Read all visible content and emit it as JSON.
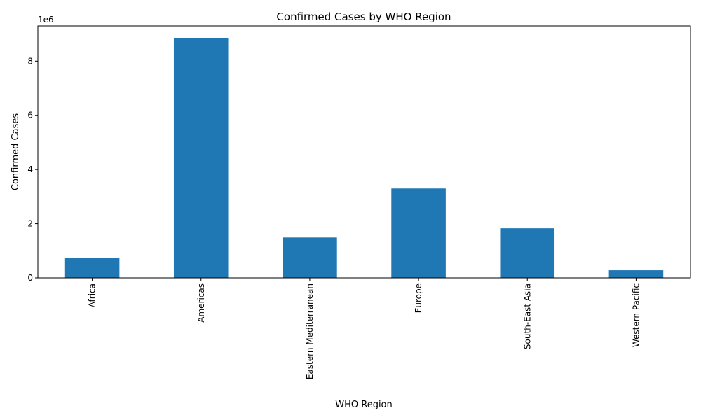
{
  "chart_data": {
    "type": "bar",
    "title": "Confirmed Cases by WHO Region",
    "xlabel": "WHO Region",
    "ylabel": "Confirmed Cases",
    "y_multiplier_label": "1e6",
    "categories": [
      "Africa",
      "Americas",
      "Eastern Mediterranean",
      "Europe",
      "South-East Asia",
      "Western Pacific"
    ],
    "values": [
      723000,
      8840000,
      1490000,
      3300000,
      1830000,
      282000
    ],
    "ylim": [
      0,
      9300000
    ],
    "yticks": [
      0,
      2000000,
      4000000,
      6000000,
      8000000
    ],
    "ytick_labels": [
      "0",
      "2",
      "4",
      "6",
      "8"
    ],
    "bar_color": "#1f77b4",
    "grid": false,
    "legend": "none"
  }
}
